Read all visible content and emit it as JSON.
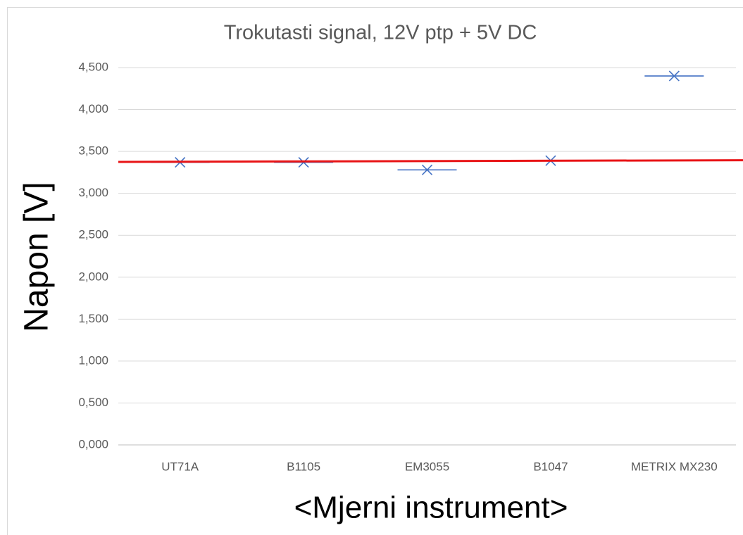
{
  "chart_data": {
    "type": "scatter",
    "title": "Trokutasti signal, 12V ptp + 5V DC",
    "y_label": "Napon [V]",
    "x_label": "<Mjerni instrument>",
    "categories": [
      "UT71A",
      "B1105",
      "EM3055",
      "B1047",
      "METRIX MX230"
    ],
    "values": [
      3.37,
      3.37,
      3.28,
      3.39,
      4.4
    ],
    "color": "#4472c4",
    "ylim": [
      0,
      4.5
    ],
    "yticks": [
      {
        "value": 0,
        "label": "0,000"
      },
      {
        "value": 0.5,
        "label": "0,500"
      },
      {
        "value": 1,
        "label": "1,000"
      },
      {
        "value": 1.5,
        "label": "1,500"
      },
      {
        "value": 2,
        "label": "2,000"
      },
      {
        "value": 2.5,
        "label": "2,500"
      },
      {
        "value": 3,
        "label": "3,000"
      },
      {
        "value": 3.5,
        "label": "3,500"
      },
      {
        "value": 4,
        "label": "4,000"
      },
      {
        "value": 4.5,
        "label": "4,500"
      }
    ],
    "grid": true,
    "trend_line": {
      "color": "#e81416",
      "values": [
        3.375,
        3.395
      ]
    }
  }
}
